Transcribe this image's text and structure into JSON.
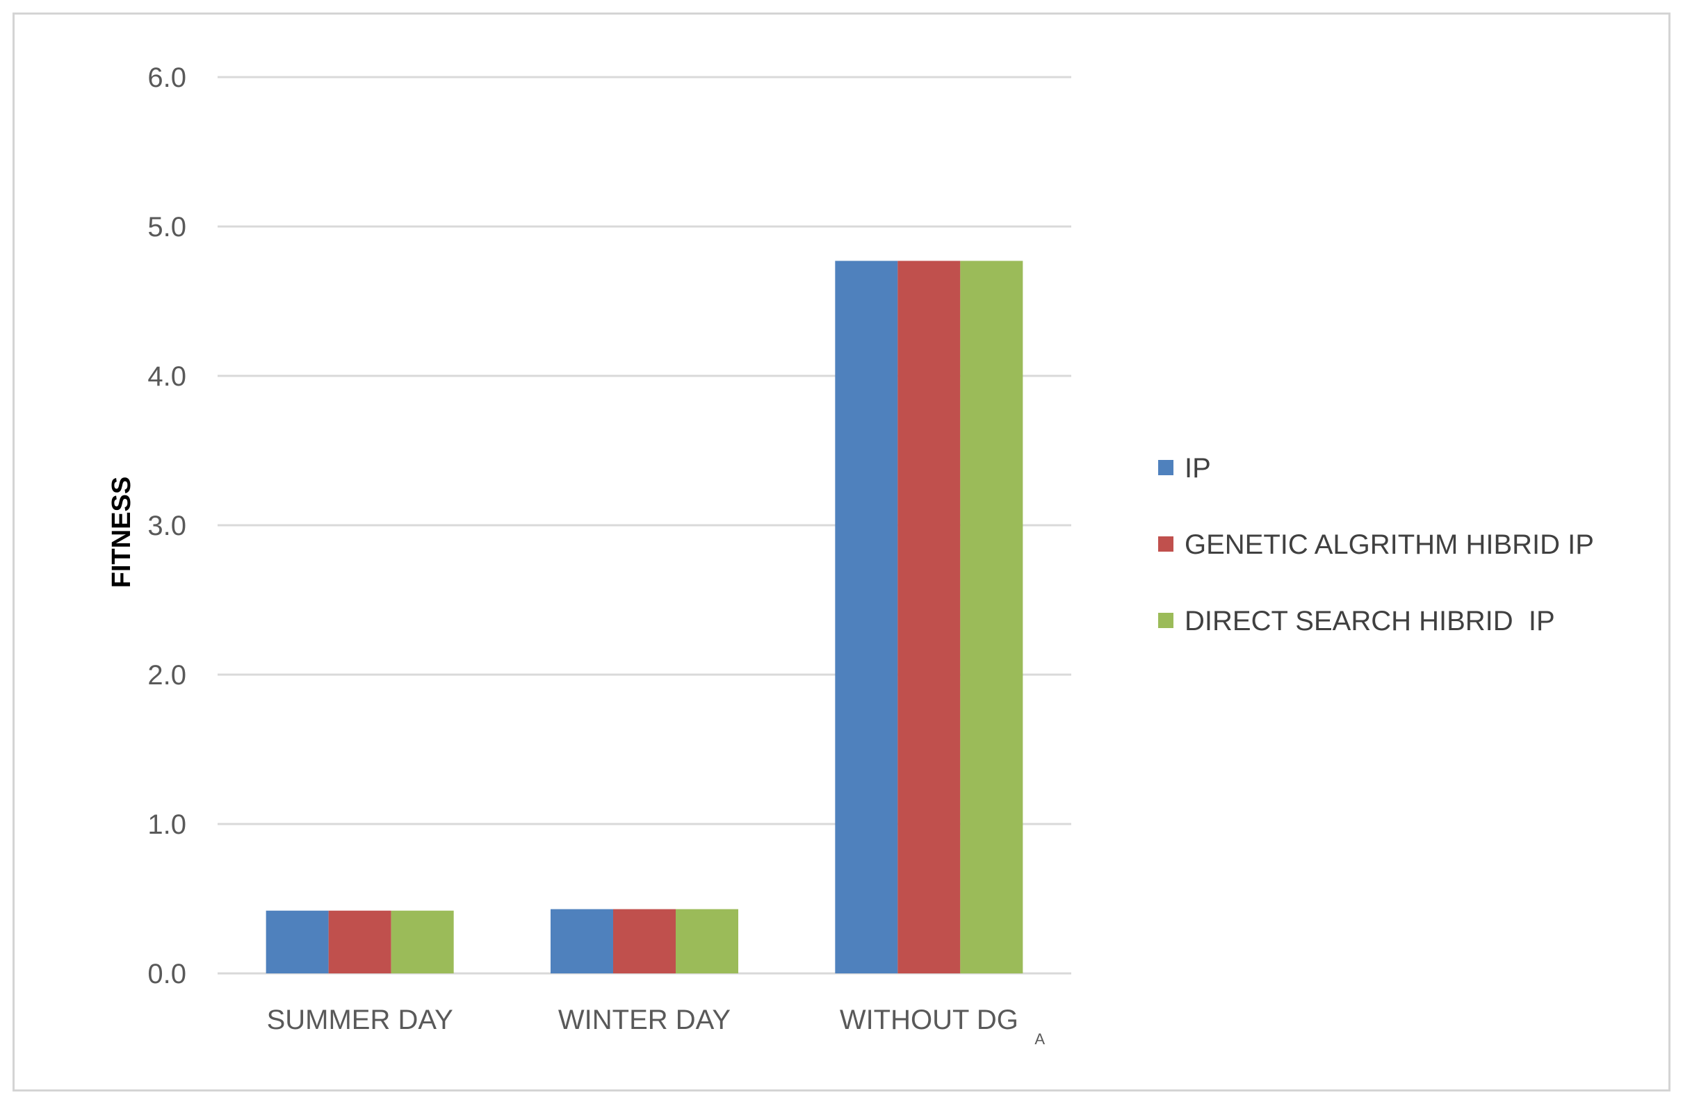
{
  "chart_data": {
    "type": "bar",
    "title": "",
    "xlabel": "",
    "ylabel": "FITNESS",
    "ylim": [
      0,
      6
    ],
    "yticks": [
      "0.0",
      "1.0",
      "2.0",
      "3.0",
      "4.0",
      "5.0",
      "6.0"
    ],
    "grid": "horizontal",
    "legend_position": "right",
    "categories": [
      "SUMMER DAY",
      "WINTER  DAY",
      "WITHOUT DG"
    ],
    "category_annotation": "A",
    "series": [
      {
        "name": "IP",
        "color": "#4f81bd",
        "values": [
          0.42,
          0.43,
          4.77
        ]
      },
      {
        "name": "GENETIC ALGRITHM HIBRID IP",
        "color": "#c0504d",
        "values": [
          0.42,
          0.43,
          4.77
        ]
      },
      {
        "name": "DIRECT SEARCH HIBRID  IP",
        "color": "#9bbb59",
        "values": [
          0.42,
          0.43,
          4.77
        ]
      }
    ]
  }
}
